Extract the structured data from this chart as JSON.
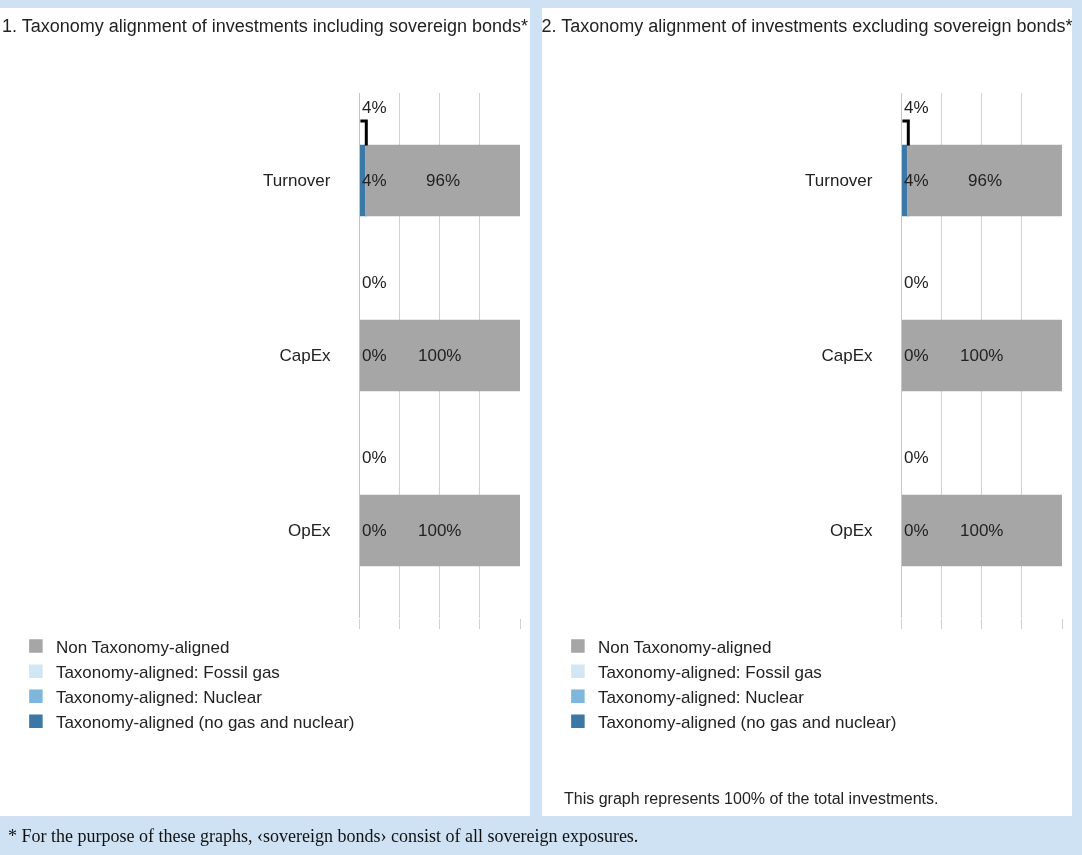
{
  "chart_data": [
    {
      "type": "bar",
      "orientation": "horizontal",
      "stacked": true,
      "title": "1. Taxonomy alignment of investments including sovereign bonds*",
      "categories": [
        "Turnover",
        "CapEx",
        "OpEx"
      ],
      "series": [
        {
          "name": "Taxonomy-aligned (no gas and nuclear)",
          "color": "#3b78a6",
          "values": [
            4,
            0,
            0
          ],
          "value_labels": [
            "4%",
            "0%",
            "0%"
          ]
        },
        {
          "name": "Taxonomy-aligned: Nuclear",
          "color": "#7fb6dc",
          "values": [
            0,
            0,
            0
          ]
        },
        {
          "name": "Taxonomy-aligned: Fossil gas",
          "color": "#d2e6f4",
          "values": [
            0,
            0,
            0
          ]
        },
        {
          "name": "Non Taxonomy-aligned",
          "color": "#a6a6a6",
          "values": [
            96,
            100,
            100
          ],
          "value_labels": [
            "96%",
            "100%",
            "100%"
          ]
        }
      ],
      "xlim": [
        0,
        100
      ],
      "xticks": [
        {
          "value": 0,
          "label": null
        },
        {
          "value": 25,
          "label": null
        },
        {
          "value": 50,
          "label": null
        },
        {
          "value": 75,
          "label": null
        },
        {
          "value": 100,
          "label": null
        }
      ],
      "grid": "x",
      "tick_labels": "y",
      "legend": "bottom",
      "annotations": [
        "4%",
        "0%",
        "0%"
      ]
    },
    {
      "type": "bar",
      "orientation": "horizontal",
      "stacked": true,
      "title": "2. Taxonomy alignment of investments excluding sovereign bonds*",
      "categories": [
        "Turnover",
        "CapEx",
        "OpEx"
      ],
      "series": [
        {
          "name": "Taxonomy-aligned (no gas and nuclear)",
          "color": "#3b78a6",
          "values": [
            4,
            0,
            0
          ],
          "value_labels": [
            "4%",
            "0%",
            "0%"
          ]
        },
        {
          "name": "Taxonomy-aligned: Nuclear",
          "color": "#7fb6dc",
          "values": [
            0,
            0,
            0
          ]
        },
        {
          "name": "Taxonomy-aligned: Fossil gas",
          "color": "#d2e6f4",
          "values": [
            0,
            0,
            0
          ]
        },
        {
          "name": "Non Taxonomy-aligned",
          "color": "#a6a6a6",
          "values": [
            96,
            100,
            100
          ],
          "value_labels": [
            "96%",
            "100%",
            "100%"
          ]
        }
      ],
      "xlim": [
        0,
        100
      ],
      "xticks": [
        {
          "value": 0,
          "label": null
        },
        {
          "value": 25,
          "label": null
        },
        {
          "value": 50,
          "label": null
        },
        {
          "value": 75,
          "label": null
        },
        {
          "value": 100,
          "label": null
        }
      ],
      "grid": "x",
      "tick_labels": "y",
      "legend": "bottom",
      "annotations": [
        "4%",
        "0%",
        "0%",
        "This graph represents 100% of the total investments.",
        "* For the purpose of these graphs, ‹sovereign bonds› consist of all sovereign exposures."
      ]
    }
  ]
}
